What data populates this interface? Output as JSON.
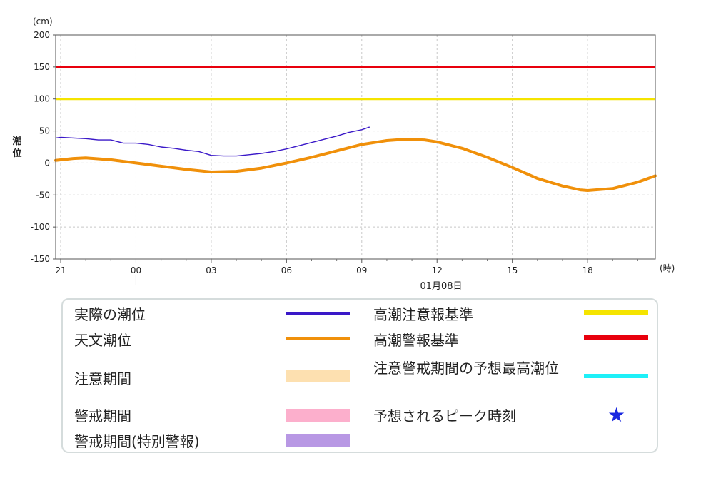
{
  "chart_data": {
    "type": "line",
    "y_unit": "(cm)",
    "ylabel": "潮位",
    "x_unit": "(時)",
    "date_label": "01月08日",
    "ylim": [
      -150,
      200
    ],
    "y_ticks": [
      200,
      150,
      100,
      50,
      0,
      -50,
      -100,
      -150
    ],
    "x_ticks": [
      "21",
      "00",
      "03",
      "06",
      "09",
      "12",
      "15",
      "18"
    ],
    "x_tick_hours": [
      21,
      24,
      27,
      30,
      33,
      36,
      39,
      42
    ],
    "xlim_hours": [
      20.8,
      44.7
    ],
    "grid": true,
    "reference_lines": [
      {
        "name": "高潮警報基準",
        "value": 150,
        "color": "#e8000d"
      },
      {
        "name": "高潮注意報基準",
        "value": 100,
        "color": "#f5e400"
      }
    ],
    "series": [
      {
        "name": "天文潮位",
        "color": "#f0900a",
        "x": [
          20.8,
          21.5,
          22.0,
          23.0,
          24.0,
          25.0,
          26.0,
          27.0,
          28.0,
          29.0,
          30.0,
          31.0,
          32.0,
          33.0,
          34.0,
          34.7,
          35.5,
          36.0,
          37.0,
          38.0,
          39.0,
          40.0,
          41.0,
          41.7,
          42.0,
          43.0,
          44.0,
          44.7
        ],
        "values": [
          4,
          7,
          8,
          5,
          0,
          -5,
          -10,
          -14,
          -13,
          -8,
          0,
          9,
          19,
          29,
          35,
          37,
          36,
          33,
          23,
          9,
          -7,
          -24,
          -36,
          -42,
          -43,
          -40,
          -30,
          -20
        ]
      },
      {
        "name": "実際の潮位",
        "color": "#3a18c8",
        "x": [
          20.8,
          21.0,
          22.0,
          22.5,
          23.0,
          23.5,
          24.0,
          24.5,
          25.0,
          25.5,
          26.0,
          26.5,
          27.0,
          27.5,
          28.0,
          28.5,
          29.0,
          29.5,
          30.0,
          30.5,
          31.0,
          31.5,
          32.0,
          32.5,
          33.0,
          33.3
        ],
        "values": [
          39,
          40,
          38,
          36,
          36,
          31,
          31,
          29,
          25,
          23,
          20,
          18,
          12,
          11,
          11,
          13,
          15,
          18,
          22,
          27,
          32,
          37,
          42,
          48,
          52,
          56
        ]
      }
    ]
  },
  "legend": {
    "items": [
      {
        "label": "実際の潮位",
        "kind": "line",
        "color": "#3a18c8"
      },
      {
        "label": "天文潮位",
        "kind": "line",
        "color": "#f0900a"
      },
      {
        "label": "注意期間",
        "kind": "band",
        "color": "#fde0b0"
      },
      {
        "label": "警戒期間",
        "kind": "band",
        "color": "#fcafcc"
      },
      {
        "label": "警戒期間(特別警報)",
        "kind": "band",
        "color": "#b898e4"
      },
      {
        "label": "高潮注意報基準",
        "kind": "line",
        "color": "#f5e400"
      },
      {
        "label": "高潮警報基準",
        "kind": "line",
        "color": "#e8000d"
      },
      {
        "label": "注意警戒期間の予想最高潮位",
        "kind": "line",
        "color": "#1ef0f8"
      },
      {
        "label": "予想されるピーク時刻",
        "kind": "star",
        "color": "#1a28e0",
        "symbol": "★"
      }
    ]
  }
}
